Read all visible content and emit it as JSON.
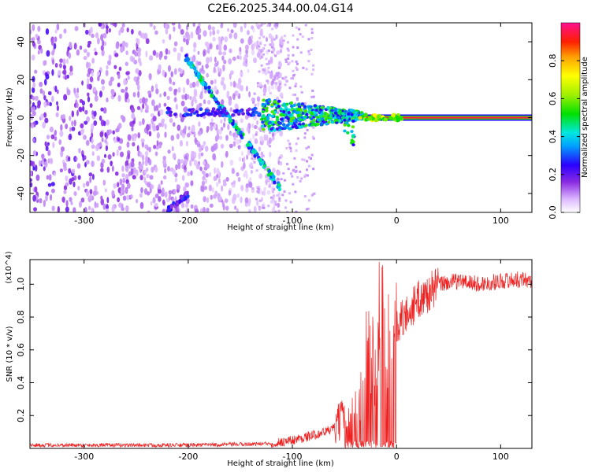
{
  "chart_data": [
    {
      "type": "heatmap",
      "title": "C2E6.2025.344.00.04.G14",
      "xlabel": "Height of straight line (km)",
      "ylabel": "Frequency (Hz)",
      "xlim": [
        -352,
        130
      ],
      "ylim": [
        -50,
        50
      ],
      "xticks": [
        -300,
        -200,
        -100,
        0,
        100
      ],
      "yticks": [
        -40,
        -20,
        0,
        20,
        40
      ],
      "colorbar": {
        "label": "Normalized spectral amplitude",
        "range": [
          0,
          1
        ],
        "ticks": [
          0.0,
          0.2,
          0.4,
          0.6,
          0.8
        ]
      },
      "features": [
        {
          "name": "wideband noise",
          "x_range": [
            -352,
            -110
          ],
          "amplitude": 0.15
        },
        {
          "name": "descending streak",
          "from": [
            -203,
            32
          ],
          "to": [
            -112,
            -37
          ],
          "amplitude": 0.35
        },
        {
          "name": "ascending streak",
          "from": [
            -222,
            -50
          ],
          "to": [
            -200,
            -40
          ],
          "amplitude": 0.2
        },
        {
          "name": "low-frequency band",
          "x_range": [
            -220,
            -130
          ],
          "frequency": 3,
          "amplitude": 0.2
        },
        {
          "name": "converging signal",
          "x_range": [
            -130,
            -30
          ],
          "frequency_range": [
            -15,
            8
          ],
          "amplitude": 0.4
        },
        {
          "name": "carrier line",
          "x_range": [
            -30,
            130
          ],
          "frequency": 0,
          "amplitude": 0.95
        }
      ]
    },
    {
      "type": "line",
      "xlabel": "Height of straight line (km)",
      "ylabel": "SNR (10 * v/v)",
      "y_scale_label": "(x10^4)",
      "xlim": [
        -352,
        130
      ],
      "ylim": [
        0,
        1.15
      ],
      "xticks": [
        -300,
        -200,
        -100,
        0,
        100
      ],
      "yticks": [
        0.2,
        0.4,
        0.6,
        0.8,
        1.0
      ],
      "color": "#ee2020",
      "series": [
        {
          "name": "SNR",
          "x": [
            -352,
            -300,
            -250,
            -200,
            -150,
            -120,
            -100,
            -80,
            -60,
            -50,
            -40,
            -35,
            -30,
            -25,
            -20,
            -15,
            -10,
            -5,
            0,
            10,
            20,
            30,
            40,
            60,
            80,
            100,
            120,
            130
          ],
          "values": [
            0.02,
            0.02,
            0.02,
            0.02,
            0.025,
            0.03,
            0.05,
            0.08,
            0.12,
            0.2,
            0.3,
            0.45,
            0.55,
            0.65,
            0.45,
            0.75,
            0.62,
            0.7,
            0.75,
            0.82,
            0.9,
            0.94,
            1.0,
            1.02,
            1.0,
            1.02,
            1.03,
            1.02
          ]
        }
      ]
    }
  ]
}
